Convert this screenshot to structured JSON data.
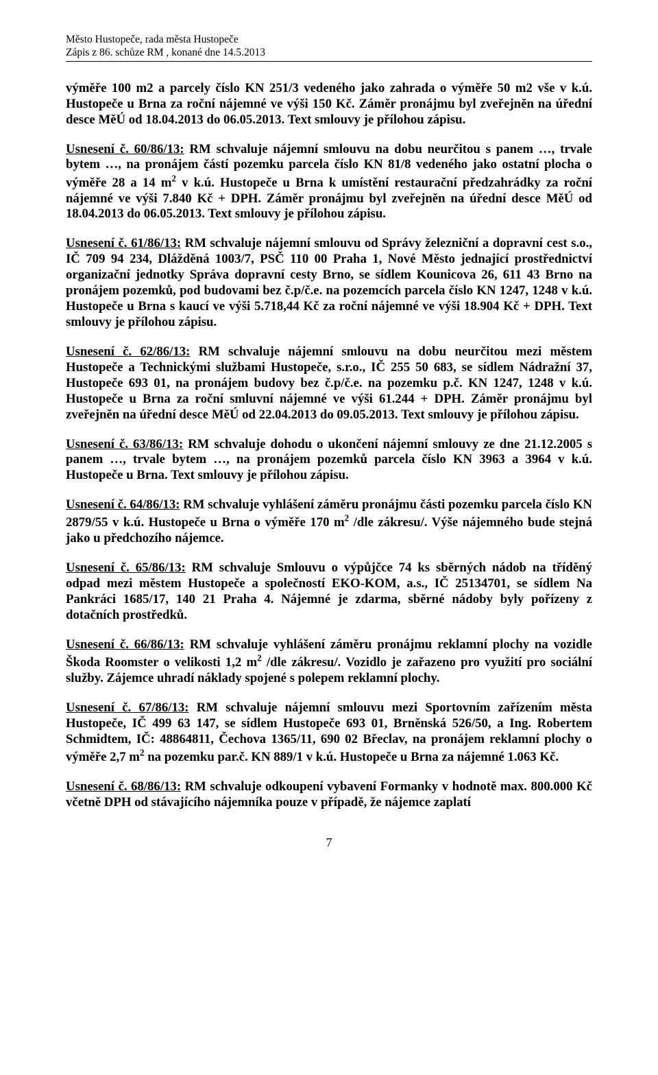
{
  "header": {
    "line1": "Město Hustopeče, rada města Hustopeče",
    "line2": "Zápis z  86.  schůze RM , konané dne 14.5.2013"
  },
  "paragraphs": [
    {
      "lead": "",
      "body_html": "výměře 100 m2 a parcely číslo KN 251/3 vedeného jako zahrada o výměře 50 m2 vše v k.ú. Hustopeče u Brna za roční nájemné ve výši 150 Kč. Záměr pronájmu byl zveřejněn na úřední desce MěÚ od 18.04.2013 do 06.05.2013. Text smlouvy je přílohou zápisu.",
      "bold": true
    },
    {
      "lead": "Usnesení č. 60/86/13:",
      "body_html": " RM schvaluje nájemní smlouvu na dobu neurčitou s panem …, trvale bytem …, na pronájem částí pozemku parcela číslo KN 81/8 vedeného jako ostatní plocha o výměře 28 a 14 m<sup>2</sup> v k.ú. Hustopeče u Brna k umístění restaurační předzahrádky za roční nájemné ve výši 7.840 Kč + DPH. Záměr pronájmu byl zveřejněn na úřední desce MěÚ od 18.04.2013 do 06.05.2013. Text smlouvy je přílohou zápisu.",
      "bold": true
    },
    {
      "lead": "Usnesení č. 61/86/13:",
      "body_html": " RM schvaluje nájemní smlouvu od Správy železniční a dopravní cest s.o., IČ 709 94 234, Dlážděná 1003/7, PSČ 110 00 Praha 1, Nové Město jednající prostřednictví organizační jednotky Správa dopravní cesty Brno, se sídlem Kounicova 26, 611 43 Brno na pronájem pozemků, pod budovami bez č.p/č.e. na pozemcích parcela číslo KN 1247, 1248 v k.ú. Hustopeče u Brna s kaucí ve výši 5.718,44 Kč za roční nájemné ve výši 18.904 Kč + DPH. Text smlouvy je přílohou zápisu.",
      "bold": true
    },
    {
      "lead": "Usnesení č. 62/86/13:",
      "body_html": " RM schvaluje nájemní smlouvu na dobu neurčitou mezi městem Hustopeče a Technickými službami Hustopeče, s.r.o., IČ 255 50 683, se sídlem Nádražní 37, Hustopeče 693 01,  na pronájem budovy bez č.p/č.e. na pozemku p.č. KN 1247, 1248 v k.ú. Hustopeče u Brna za roční smluvní nájemné ve výši 61.244 + DPH. Záměr pronájmu byl zveřejněn na úřední desce MěÚ od 22.04.2013 do 09.05.2013. Text smlouvy je přílohou zápisu.",
      "bold": true
    },
    {
      "lead": "Usnesení č. 63/86/13:",
      "body_html": " RM schvaluje dohodu o ukončení nájemní smlouvy ze dne 21.12.2005 s panem …, trvale bytem …, na pronájem pozemků parcela číslo KN 3963 a 3964 v k.ú. Hustopeče u Brna. Text smlouvy je přílohou zápisu.",
      "bold": true
    },
    {
      "lead": "Usnesení č. 64/86/13:",
      "body_html": " RM schvaluje vyhlášení záměru pronájmu části pozemku parcela číslo KN 2879/55 v k.ú. Hustopeče u Brna o výměře 170 m<sup>2</sup> /dle zákresu/. Výše nájemného bude stejná jako u předchozího nájemce.",
      "bold": true
    },
    {
      "lead": "Usnesení č. 65/86/13:",
      "body_html": " RM schvaluje Smlouvu o výpůjčce 74 ks sběrných nádob na tříděný odpad mezi městem Hustopeče a společností EKO-KOM, a.s., IČ 25134701, se sídlem Na Pankráci 1685/17, 140 21 Praha 4. Nájemné je zdarma, sběrné nádoby byly pořízeny z dotačních prostředků.",
      "bold": true
    },
    {
      "lead": "Usnesení č. 66/86/13:",
      "body_html": " RM schvaluje vyhlášení záměru pronájmu reklamní plochy na vozidle Škoda Roomster o velikosti 1,2 m<sup>2</sup> /dle zákresu/. Vozidlo je zařazeno pro využití pro sociální služby. Zájemce uhradí náklady spojené s polepem reklamní plochy.",
      "bold": true
    },
    {
      "lead": "Usnesení č. 67/86/13:",
      "body_html": " RM schvaluje nájemní smlouvu mezi Sportovním zařízením města Hustopeče, IČ 499 63 147, se sídlem Hustopeče 693 01, Brněnská 526/50, a Ing. Robertem Schmidtem, IČ: 48864811, Čechova 1365/11, 690 02 Břeclav, na pronájem reklamní plochy o výměře 2,7 m<sup>2</sup> na pozemku par.č. KN 889/1 v k.ú. Hustopeče u Brna za nájemné 1.063 Kč.",
      "bold": true
    },
    {
      "lead": "Usnesení č. 68/86/13:",
      "body_html": " RM schvaluje odkoupení vybavení Formanky v hodnotě max. 800.000 Kč včetně DPH od stávajícího nájemníka pouze v případě, že nájemce zaplatí",
      "bold": true
    }
  ],
  "page_number": "7"
}
